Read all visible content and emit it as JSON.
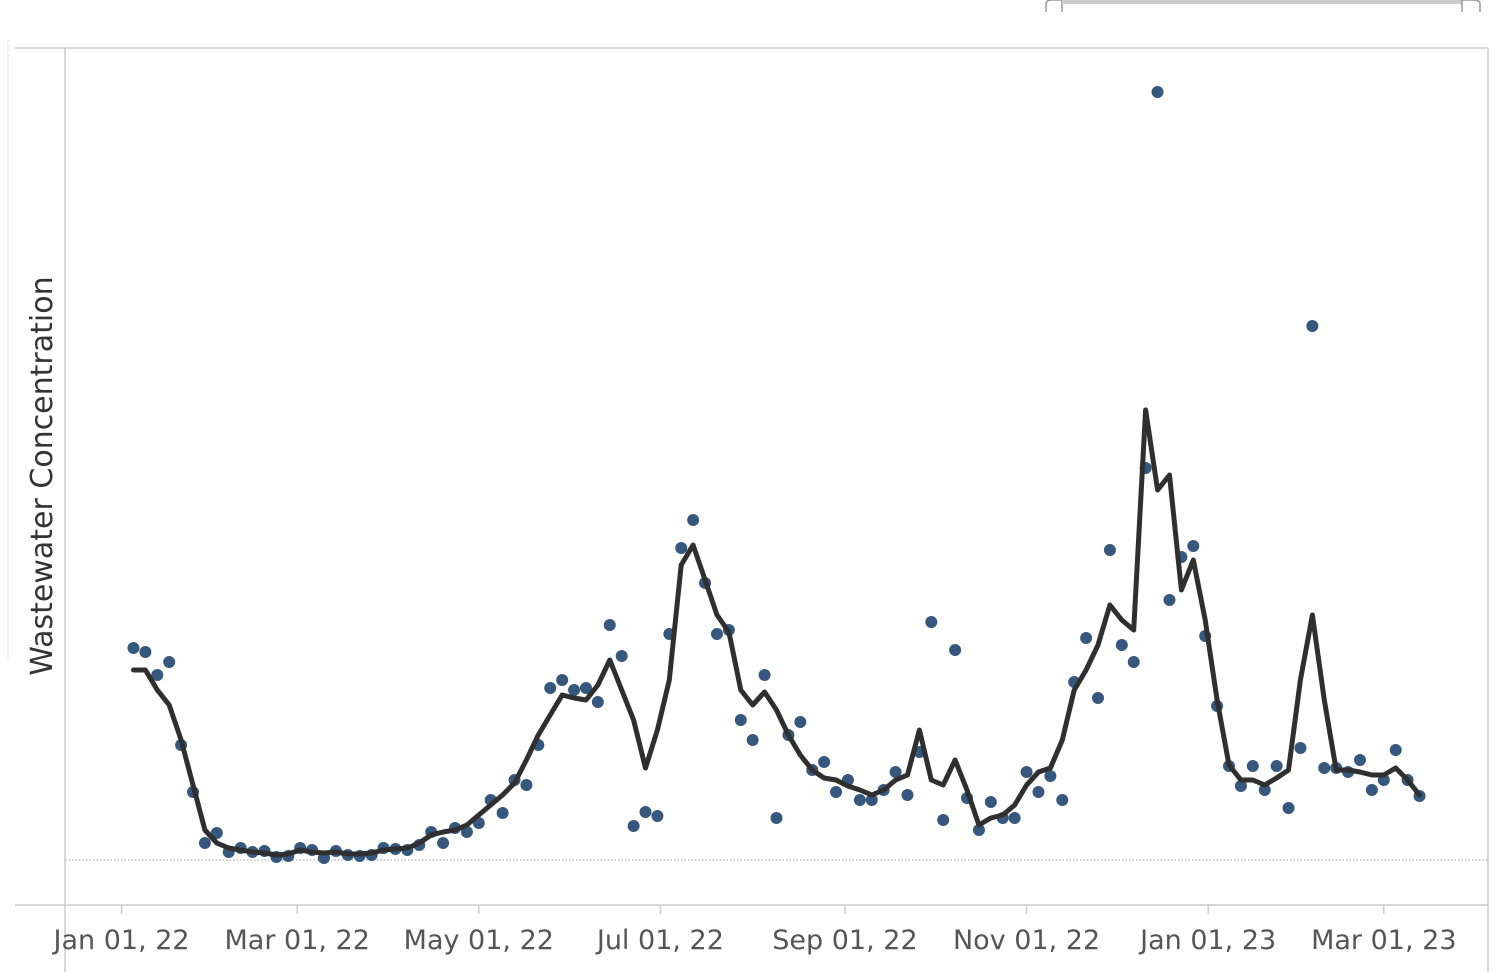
{
  "chart_data": {
    "type": "line",
    "y_label": "Wastewater Concentration",
    "xlim": [
      "2021-12-13",
      "2023-04-05"
    ],
    "ylim": [
      -45,
      812
    ],
    "zero_line": true,
    "xticks": [
      {
        "value": "2022-01-01",
        "label": "Jan 01, 22"
      },
      {
        "value": "2022-03-01",
        "label": "Mar 01, 22"
      },
      {
        "value": "2022-05-01",
        "label": "May 01, 22"
      },
      {
        "value": "2022-07-01",
        "label": "Jul 01, 22"
      },
      {
        "value": "2022-09-01",
        "label": "Sep 01, 22"
      },
      {
        "value": "2022-11-01",
        "label": "Nov 01, 22"
      },
      {
        "value": "2023-01-01",
        "label": "Jan 01, 23"
      },
      {
        "value": "2023-03-01",
        "label": "Mar 01, 23"
      }
    ],
    "x": [
      "2022-01-05",
      "2022-01-09",
      "2022-01-13",
      "2022-01-17",
      "2022-01-21",
      "2022-01-25",
      "2022-01-29",
      "2022-02-02",
      "2022-02-06",
      "2022-02-10",
      "2022-02-14",
      "2022-02-18",
      "2022-02-22",
      "2022-02-26",
      "2022-03-02",
      "2022-03-06",
      "2022-03-10",
      "2022-03-14",
      "2022-03-18",
      "2022-03-22",
      "2022-03-26",
      "2022-03-30",
      "2022-04-03",
      "2022-04-07",
      "2022-04-11",
      "2022-04-15",
      "2022-04-19",
      "2022-04-23",
      "2022-04-27",
      "2022-05-01",
      "2022-05-05",
      "2022-05-09",
      "2022-05-13",
      "2022-05-17",
      "2022-05-21",
      "2022-05-25",
      "2022-05-29",
      "2022-06-02",
      "2022-06-06",
      "2022-06-10",
      "2022-06-14",
      "2022-06-18",
      "2022-06-22",
      "2022-06-26",
      "2022-06-30",
      "2022-07-04",
      "2022-07-08",
      "2022-07-12",
      "2022-07-16",
      "2022-07-20",
      "2022-07-24",
      "2022-07-28",
      "2022-08-01",
      "2022-08-05",
      "2022-08-09",
      "2022-08-13",
      "2022-08-17",
      "2022-08-21",
      "2022-08-25",
      "2022-08-29",
      "2022-09-02",
      "2022-09-06",
      "2022-09-10",
      "2022-09-14",
      "2022-09-18",
      "2022-09-22",
      "2022-09-26",
      "2022-09-30",
      "2022-10-04",
      "2022-10-08",
      "2022-10-12",
      "2022-10-16",
      "2022-10-20",
      "2022-10-24",
      "2022-10-28",
      "2022-11-01",
      "2022-11-05",
      "2022-11-09",
      "2022-11-13",
      "2022-11-17",
      "2022-11-21",
      "2022-11-25",
      "2022-11-29",
      "2022-12-03",
      "2022-12-07",
      "2022-12-11",
      "2022-12-15",
      "2022-12-19",
      "2022-12-23",
      "2022-12-27",
      "2022-12-31",
      "2023-01-04",
      "2023-01-08",
      "2023-01-12",
      "2023-01-16",
      "2023-01-20",
      "2023-01-24",
      "2023-01-28",
      "2023-02-01",
      "2023-02-05",
      "2023-02-09",
      "2023-02-13",
      "2023-02-17",
      "2023-02-21",
      "2023-02-25",
      "2023-03-01",
      "2023-03-05",
      "2023-03-09",
      "2023-03-13"
    ],
    "series": [
      {
        "type": "scatter",
        "color": "#37587e",
        "values": [
          212,
          208,
          185,
          198,
          115,
          68,
          17,
          27,
          8,
          12,
          8,
          9,
          3,
          4,
          12,
          10,
          2,
          9,
          5,
          4,
          5,
          12,
          11,
          10,
          15,
          28,
          17,
          32,
          28,
          37,
          60,
          47,
          80,
          75,
          115,
          172,
          180,
          170,
          172,
          158,
          235,
          204,
          34,
          48,
          44,
          226,
          312,
          340,
          277,
          226,
          230,
          140,
          120,
          185,
          42,
          125,
          138,
          90,
          98,
          68,
          80,
          60,
          60,
          70,
          88,
          65,
          108,
          238,
          40,
          210,
          62,
          30,
          58,
          42,
          42,
          88,
          68,
          84,
          60,
          178,
          222,
          162,
          310,
          215,
          198,
          392,
          768,
          260,
          303,
          314,
          224,
          154,
          94,
          74,
          94,
          70,
          94,
          52,
          112,
          534,
          92,
          92,
          88,
          100,
          70,
          80,
          110,
          80,
          64
        ]
      },
      {
        "type": "line",
        "color": "#2f2f2f",
        "values": [
          190,
          190,
          170,
          155,
          120,
          75,
          30,
          17,
          12,
          10,
          8,
          7,
          5,
          6,
          10,
          8,
          7,
          8,
          6,
          6,
          7,
          10,
          11,
          12,
          17,
          25,
          28,
          30,
          35,
          45,
          55,
          65,
          77,
          100,
          125,
          145,
          165,
          162,
          160,
          175,
          200,
          170,
          140,
          92,
          130,
          180,
          295,
          315,
          280,
          245,
          228,
          170,
          155,
          168,
          150,
          125,
          105,
          90,
          82,
          80,
          74,
          70,
          65,
          70,
          80,
          85,
          130,
          80,
          75,
          100,
          70,
          35,
          42,
          45,
          55,
          75,
          88,
          92,
          120,
          170,
          190,
          215,
          255,
          240,
          230,
          450,
          370,
          385,
          270,
          300,
          240,
          160,
          95,
          80,
          80,
          75,
          82,
          90,
          180,
          245,
          160,
          90,
          90,
          88,
          85,
          85,
          92,
          80,
          65
        ]
      }
    ]
  }
}
